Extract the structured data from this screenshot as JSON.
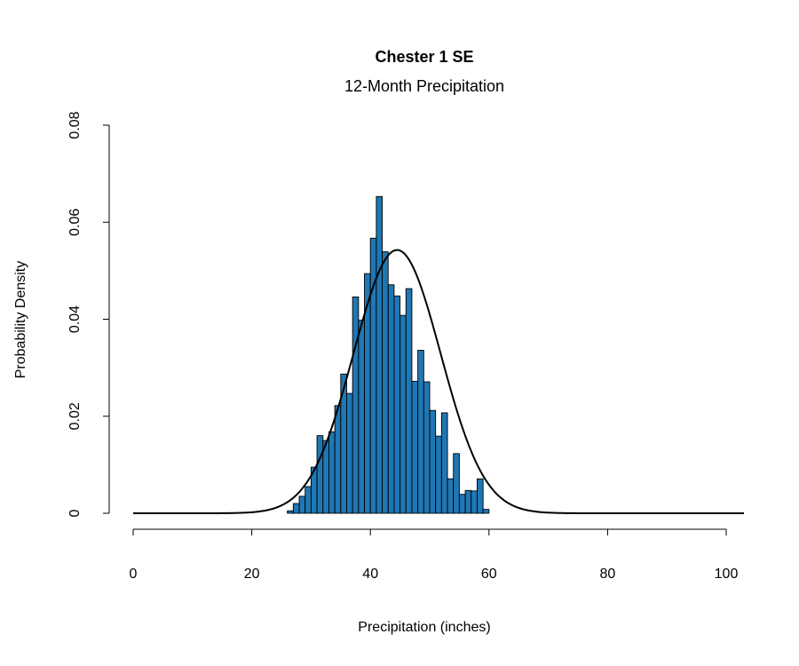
{
  "chart_data": {
    "type": "bar",
    "title": "Chester 1 SE",
    "subtitle": "12-Month Precipitation",
    "xlabel": "Precipitation (inches)",
    "ylabel": "Probability Density",
    "xlim": [
      0,
      103
    ],
    "ylim": [
      0,
      0.08
    ],
    "x_ticks": [
      "0",
      "20",
      "40",
      "60",
      "80",
      "100"
    ],
    "y_ticks": [
      "0",
      "0.02",
      "0.04",
      "0.06",
      "0.08"
    ],
    "bar_color": "#1f77b4",
    "bin_width": 1,
    "bins": [
      {
        "x0": 26,
        "value": 0.0005
      },
      {
        "x0": 27,
        "value": 0.002
      },
      {
        "x0": 28,
        "value": 0.0035
      },
      {
        "x0": 29,
        "value": 0.0055
      },
      {
        "x0": 30,
        "value": 0.0095
      },
      {
        "x0": 31,
        "value": 0.016
      },
      {
        "x0": 32,
        "value": 0.015
      },
      {
        "x0": 33,
        "value": 0.0168
      },
      {
        "x0": 34,
        "value": 0.0222
      },
      {
        "x0": 35,
        "value": 0.0287
      },
      {
        "x0": 36,
        "value": 0.0247
      },
      {
        "x0": 37,
        "value": 0.0446
      },
      {
        "x0": 38,
        "value": 0.0398
      },
      {
        "x0": 39,
        "value": 0.0494
      },
      {
        "x0": 40,
        "value": 0.0567
      },
      {
        "x0": 41,
        "value": 0.0653
      },
      {
        "x0": 42,
        "value": 0.0539
      },
      {
        "x0": 43,
        "value": 0.0471
      },
      {
        "x0": 44,
        "value": 0.0448
      },
      {
        "x0": 45,
        "value": 0.0408
      },
      {
        "x0": 46,
        "value": 0.0463
      },
      {
        "x0": 47,
        "value": 0.0272
      },
      {
        "x0": 48,
        "value": 0.0336
      },
      {
        "x0": 49,
        "value": 0.0271
      },
      {
        "x0": 50,
        "value": 0.0212
      },
      {
        "x0": 51,
        "value": 0.0159
      },
      {
        "x0": 52,
        "value": 0.0207
      },
      {
        "x0": 53,
        "value": 0.0071
      },
      {
        "x0": 54,
        "value": 0.0123
      },
      {
        "x0": 55,
        "value": 0.0039
      },
      {
        "x0": 56,
        "value": 0.0047
      },
      {
        "x0": 57,
        "value": 0.0046
      },
      {
        "x0": 58,
        "value": 0.0071
      },
      {
        "x0": 59,
        "value": 0.0008
      }
    ],
    "density_curve": {
      "type": "normal",
      "mean": 44.5,
      "sd": 7.35
    },
    "grid": false
  }
}
